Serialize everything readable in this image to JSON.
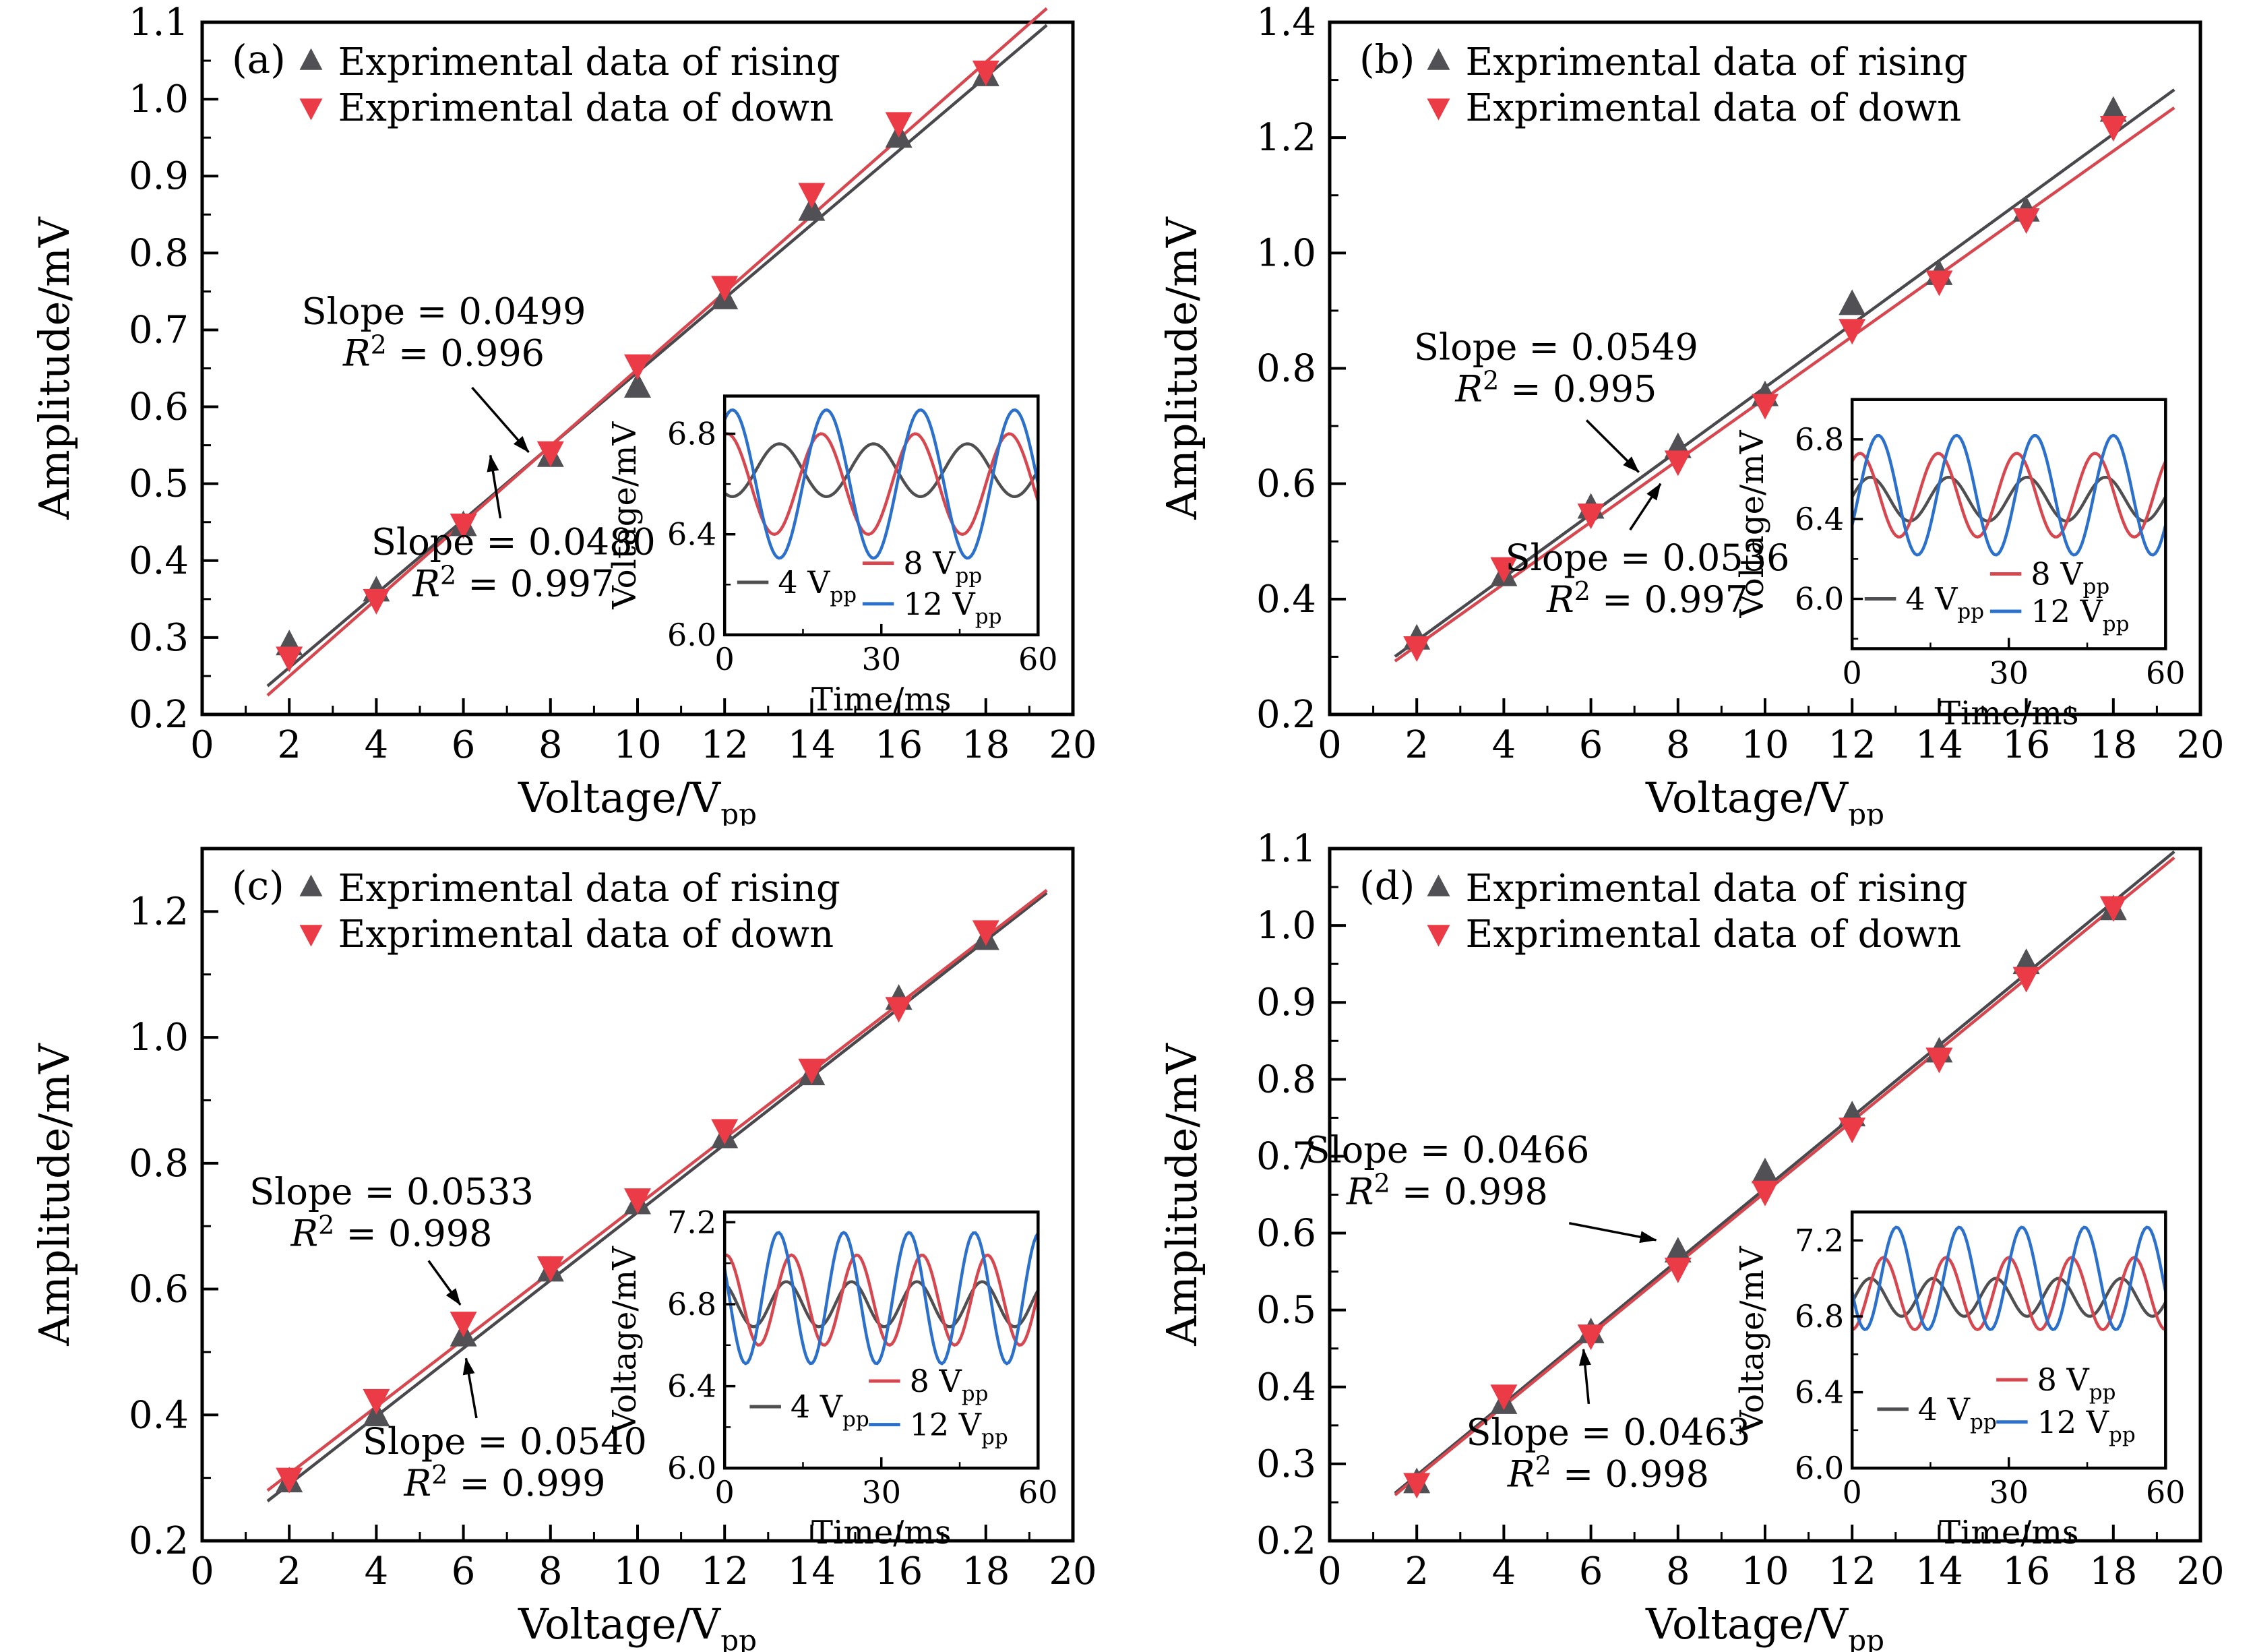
{
  "figure": {
    "background": "#ffffff",
    "axis_color": "#000000"
  },
  "chart_data": [
    {
      "id": "a",
      "type": "scatter",
      "panel_tag": "(a)",
      "xlabel": {
        "text": "Voltage/V",
        "sub": "pp"
      },
      "ylabel": "Amplitude/mV",
      "xlim": [
        0,
        20
      ],
      "ylim": [
        0.2,
        1.1
      ],
      "xticks": [
        0,
        2,
        4,
        6,
        8,
        10,
        12,
        14,
        16,
        18,
        20
      ],
      "xminor_step": 1,
      "xtick_decimals": 0,
      "yticks": [
        0.2,
        0.3,
        0.4,
        0.5,
        0.6,
        0.7,
        0.8,
        0.9,
        1.0,
        1.1
      ],
      "yminor_step": 0.05,
      "ytick_decimals": 1,
      "x": [
        2,
        4,
        6,
        8,
        10,
        12,
        14,
        16,
        18
      ],
      "series": [
        {
          "name": "rising",
          "legend": "Exprimental data of rising",
          "marker": "up",
          "color": "#515155",
          "y": [
            0.29,
            0.36,
            0.445,
            0.535,
            0.625,
            0.74,
            0.855,
            0.95,
            1.03
          ],
          "fit": {
            "slope": 0.048,
            "intercept": 0.165,
            "x1": 1.5,
            "x2": 19.4,
            "color": "#49494d"
          }
        },
        {
          "name": "down",
          "legend": "Exprimental data of down",
          "marker": "down",
          "color": "#ea3b47",
          "y": [
            0.275,
            0.35,
            0.448,
            0.542,
            0.655,
            0.757,
            0.878,
            0.97,
            1.037
          ],
          "fit": {
            "slope": 0.0499,
            "intercept": 0.15,
            "x1": 1.5,
            "x2": 19.4,
            "color": "#d7474f"
          }
        }
      ],
      "annotations": [
        {
          "slope_text": "Slope = 0.0499",
          "r2_value": "0.996",
          "x": 5.55,
          "y": 0.708,
          "arrow": [
            6.2,
            0.625,
            7.5,
            0.541
          ]
        },
        {
          "slope_text": "Slope = 0.0480",
          "r2_value": "0.997",
          "x": 7.15,
          "y": 0.408,
          "arrow": [
            6.85,
            0.455,
            6.62,
            0.537
          ]
        }
      ],
      "inset": {
        "rect": {
          "x0": 0.6,
          "y0": 0.54,
          "w": 0.36,
          "h": 0.345
        },
        "xlabel": "Time/ms",
        "ylabel": "Voltage/mV",
        "xlim": [
          0,
          60
        ],
        "xticks": [
          0,
          30,
          60
        ],
        "xminor_step": 15,
        "ylim": [
          6.0,
          6.95
        ],
        "yticks": [
          6.0,
          6.4,
          6.8
        ],
        "yminor_step": 0.2,
        "ytick_decimals": 1,
        "waves": [
          {
            "legend": {
              "text": "4 V",
              "sub": "pp"
            },
            "color": "#4f4f52",
            "center": 6.655,
            "amplitude": 0.105,
            "period": 18,
            "peak_t": 10.5
          },
          {
            "legend": {
              "text": "8 V",
              "sub": "pp"
            },
            "color": "#d7474f",
            "center": 6.6,
            "amplitude": 0.2,
            "period": 18,
            "peak_t": 0.5
          },
          {
            "legend": {
              "text": "12 V",
              "sub": "pp"
            },
            "color": "#2b70cb",
            "center": 6.6,
            "amplitude": 0.295,
            "period": 18,
            "peak_t": 1.5
          }
        ],
        "legend_layout": {
          "left_x": 0.04,
          "left_y": 0.78,
          "right_x": 0.44,
          "right_y1": 0.7,
          "right_y2": 0.87
        }
      }
    },
    {
      "id": "b",
      "type": "scatter",
      "panel_tag": "(b)",
      "xlabel": {
        "text": "Voltage/V",
        "sub": "pp"
      },
      "ylabel": "Amplitude/mV",
      "xlim": [
        0,
        20
      ],
      "ylim": [
        0.2,
        1.4
      ],
      "xticks": [
        0,
        2,
        4,
        6,
        8,
        10,
        12,
        14,
        16,
        18,
        20
      ],
      "xminor_step": 1,
      "xtick_decimals": 0,
      "yticks": [
        0.2,
        0.4,
        0.6,
        0.8,
        1.0,
        1.2,
        1.4
      ],
      "yminor_step": 0.1,
      "ytick_decimals": 1,
      "x": [
        2,
        4,
        6,
        8,
        10,
        12,
        14,
        16,
        18
      ],
      "series": [
        {
          "name": "rising",
          "legend": "Exprimental data of rising",
          "marker": "up",
          "color": "#515155",
          "y": [
            0.33,
            0.44,
            0.557,
            0.662,
            0.752,
            0.91,
            0.962,
            1.072,
            1.245
          ],
          "fit": {
            "slope": 0.0549,
            "intercept": 0.218,
            "x1": 1.5,
            "x2": 19.4,
            "color": "#49494d"
          }
        },
        {
          "name": "down",
          "legend": "Exprimental data of down",
          "marker": "down",
          "color": "#ea3b47",
          "y": [
            0.318,
            0.455,
            0.548,
            0.64,
            0.738,
            0.868,
            0.952,
            1.06,
            1.22
          ],
          "fit": {
            "slope": 0.0536,
            "intercept": 0.212,
            "x1": 1.5,
            "x2": 19.4,
            "color": "#d7474f"
          }
        }
      ],
      "annotations": [
        {
          "slope_text": "Slope = 0.0549",
          "r2_value": "0.995",
          "x": 5.2,
          "y": 0.815,
          "arrow": [
            5.9,
            0.71,
            7.1,
            0.62
          ]
        },
        {
          "slope_text": "Slope = 0.0536",
          "r2_value": "0.997",
          "x": 7.3,
          "y": 0.45,
          "arrow": [
            6.9,
            0.52,
            7.6,
            0.6
          ]
        }
      ],
      "inset": {
        "rect": {
          "x0": 0.6,
          "y0": 0.545,
          "w": 0.36,
          "h": 0.36
        },
        "xlabel": "Time/ms",
        "ylabel": "Voltage/mV",
        "xlim": [
          0,
          60
        ],
        "xticks": [
          0,
          30,
          60
        ],
        "xminor_step": 15,
        "ylim": [
          5.75,
          7.0
        ],
        "yticks": [
          6.0,
          6.4,
          6.8
        ],
        "yminor_step": 0.2,
        "ytick_decimals": 1,
        "waves": [
          {
            "legend": {
              "text": "4 V",
              "sub": "pp"
            },
            "color": "#4f4f52",
            "center": 6.5,
            "amplitude": 0.11,
            "period": 15,
            "peak_t": 3.5
          },
          {
            "legend": {
              "text": "8 V",
              "sub": "pp"
            },
            "color": "#d7474f",
            "center": 6.52,
            "amplitude": 0.21,
            "period": 15,
            "peak_t": 1.5
          },
          {
            "legend": {
              "text": "12 V",
              "sub": "pp"
            },
            "color": "#2b70cb",
            "center": 6.52,
            "amplitude": 0.3,
            "period": 15,
            "peak_t": 5
          }
        ],
        "legend_layout": {
          "left_x": 0.04,
          "left_y": 0.8,
          "right_x": 0.44,
          "right_y1": 0.7,
          "right_y2": 0.85
        }
      }
    },
    {
      "id": "c",
      "type": "scatter",
      "panel_tag": "(c)",
      "xlabel": {
        "text": "Voltage/V",
        "sub": "pp"
      },
      "ylabel": "Amplitude/mV",
      "xlim": [
        0,
        20
      ],
      "ylim": [
        0.2,
        1.3
      ],
      "xticks": [
        0,
        2,
        4,
        6,
        8,
        10,
        12,
        14,
        16,
        18,
        20
      ],
      "xminor_step": 1,
      "xtick_decimals": 0,
      "yticks": [
        0.2,
        0.4,
        0.6,
        0.8,
        1.0,
        1.2
      ],
      "yminor_step": 0.1,
      "ytick_decimals": 1,
      "x": [
        2,
        4,
        6,
        8,
        10,
        12,
        14,
        16,
        18
      ],
      "series": [
        {
          "name": "rising",
          "legend": "Exprimental data of rising",
          "marker": "up",
          "color": "#515155",
          "y": [
            0.293,
            0.398,
            0.525,
            0.628,
            0.735,
            0.84,
            0.94,
            1.06,
            1.155
          ],
          "fit": {
            "slope": 0.054,
            "intercept": 0.182,
            "x1": 1.5,
            "x2": 19.4,
            "color": "#49494d"
          }
        },
        {
          "name": "down",
          "legend": "Exprimental data of down",
          "marker": "down",
          "color": "#ea3b47",
          "y": [
            0.3,
            0.425,
            0.548,
            0.636,
            0.744,
            0.854,
            0.95,
            1.048,
            1.17
          ],
          "fit": {
            "slope": 0.0533,
            "intercept": 0.2,
            "x1": 1.5,
            "x2": 19.4,
            "color": "#d7474f"
          }
        }
      ],
      "annotations": [
        {
          "slope_text": "Slope = 0.0533",
          "r2_value": "0.998",
          "x": 4.35,
          "y": 0.735,
          "arrow": [
            5.2,
            0.645,
            5.93,
            0.575
          ]
        },
        {
          "slope_text": "Slope = 0.0540",
          "r2_value": "0.999",
          "x": 6.95,
          "y": 0.338,
          "arrow": [
            6.3,
            0.395,
            6.06,
            0.49
          ]
        }
      ],
      "inset": {
        "rect": {
          "x0": 0.6,
          "y0": 0.525,
          "w": 0.36,
          "h": 0.37
        },
        "xlabel": "Time/ms",
        "ylabel": "Voltage/mV",
        "xlim": [
          0,
          60
        ],
        "xticks": [
          0,
          30,
          60
        ],
        "xminor_step": 15,
        "ylim": [
          6.0,
          7.25
        ],
        "yticks": [
          6.0,
          6.4,
          6.8,
          7.2
        ],
        "yminor_step": 0.2,
        "ytick_decimals": 1,
        "waves": [
          {
            "legend": {
              "text": "4 V",
              "sub": "pp"
            },
            "color": "#4f4f52",
            "center": 6.8,
            "amplitude": 0.11,
            "period": 12.5,
            "peak_t": 11.8
          },
          {
            "legend": {
              "text": "8 V",
              "sub": "pp"
            },
            "color": "#d7474f",
            "center": 6.82,
            "amplitude": 0.22,
            "period": 12.5,
            "peak_t": 0.3
          },
          {
            "legend": {
              "text": "12 V",
              "sub": "pp"
            },
            "color": "#2b70cb",
            "center": 6.83,
            "amplitude": 0.32,
            "period": 12.5,
            "peak_t": 10.3
          }
        ],
        "legend_layout": {
          "left_x": 0.08,
          "left_y": 0.76,
          "right_x": 0.46,
          "right_y1": 0.66,
          "right_y2": 0.83
        }
      }
    },
    {
      "id": "d",
      "type": "scatter",
      "panel_tag": "(d)",
      "xlabel": {
        "text": "Voltage/V",
        "sub": "pp"
      },
      "ylabel": "Amplitude/mV",
      "xlim": [
        0,
        20
      ],
      "ylim": [
        0.2,
        1.1
      ],
      "xticks": [
        0,
        2,
        4,
        6,
        8,
        10,
        12,
        14,
        16,
        18,
        20
      ],
      "xminor_step": 1,
      "xtick_decimals": 0,
      "yticks": [
        0.2,
        0.3,
        0.4,
        0.5,
        0.6,
        0.7,
        0.8,
        0.9,
        1.0,
        1.1
      ],
      "yminor_step": 0.05,
      "ytick_decimals": 1,
      "x": [
        2,
        4,
        6,
        8,
        10,
        12,
        14,
        16,
        18
      ],
      "series": [
        {
          "name": "rising",
          "legend": "Exprimental data of rising",
          "marker": "up",
          "color": "#515155",
          "y": [
            0.275,
            0.378,
            0.47,
            0.575,
            0.678,
            0.752,
            0.835,
            0.95,
            1.02
          ],
          "fit": {
            "slope": 0.0466,
            "intercept": 0.192,
            "x1": 1.5,
            "x2": 19.4,
            "color": "#49494d"
          }
        },
        {
          "name": "down",
          "legend": "Exprimental data of down",
          "marker": "down",
          "color": "#ea3b47",
          "y": [
            0.275,
            0.39,
            0.468,
            0.555,
            0.655,
            0.737,
            0.828,
            0.933,
            1.025
          ],
          "fit": {
            "slope": 0.0463,
            "intercept": 0.19,
            "x1": 1.5,
            "x2": 19.4,
            "color": "#d7474f"
          }
        }
      ],
      "annotations": [
        {
          "slope_text": "Slope = 0.0466",
          "r2_value": "0.998",
          "x": 2.7,
          "y": 0.692,
          "arrow": [
            5.5,
            0.613,
            7.5,
            0.591
          ]
        },
        {
          "slope_text": "Slope = 0.0463",
          "r2_value": "0.998",
          "x": 6.4,
          "y": 0.325,
          "arrow": [
            5.95,
            0.378,
            5.83,
            0.449
          ]
        }
      ],
      "inset": {
        "rect": {
          "x0": 0.6,
          "y0": 0.525,
          "w": 0.36,
          "h": 0.37
        },
        "xlabel": "Time/ms",
        "ylabel": "Voltage/mV",
        "xlim": [
          0,
          60
        ],
        "xticks": [
          0,
          30,
          60
        ],
        "xminor_step": 15,
        "ylim": [
          6.0,
          7.35
        ],
        "yticks": [
          6.0,
          6.4,
          6.8,
          7.2
        ],
        "yminor_step": 0.2,
        "ytick_decimals": 1,
        "waves": [
          {
            "legend": {
              "text": "4 V",
              "sub": "pp"
            },
            "color": "#4f4f52",
            "center": 6.9,
            "amplitude": 0.1,
            "period": 12,
            "peak_t": 3.5
          },
          {
            "legend": {
              "text": "8 V",
              "sub": "pp"
            },
            "color": "#d7474f",
            "center": 6.92,
            "amplitude": 0.19,
            "period": 12,
            "peak_t": 6
          },
          {
            "legend": {
              "text": "12 V",
              "sub": "pp"
            },
            "color": "#2b70cb",
            "center": 7.0,
            "amplitude": 0.27,
            "period": 12,
            "peak_t": 8.5
          }
        ],
        "legend_layout": {
          "left_x": 0.08,
          "left_y": 0.77,
          "right_x": 0.46,
          "right_y1": 0.655,
          "right_y2": 0.82
        }
      }
    }
  ]
}
